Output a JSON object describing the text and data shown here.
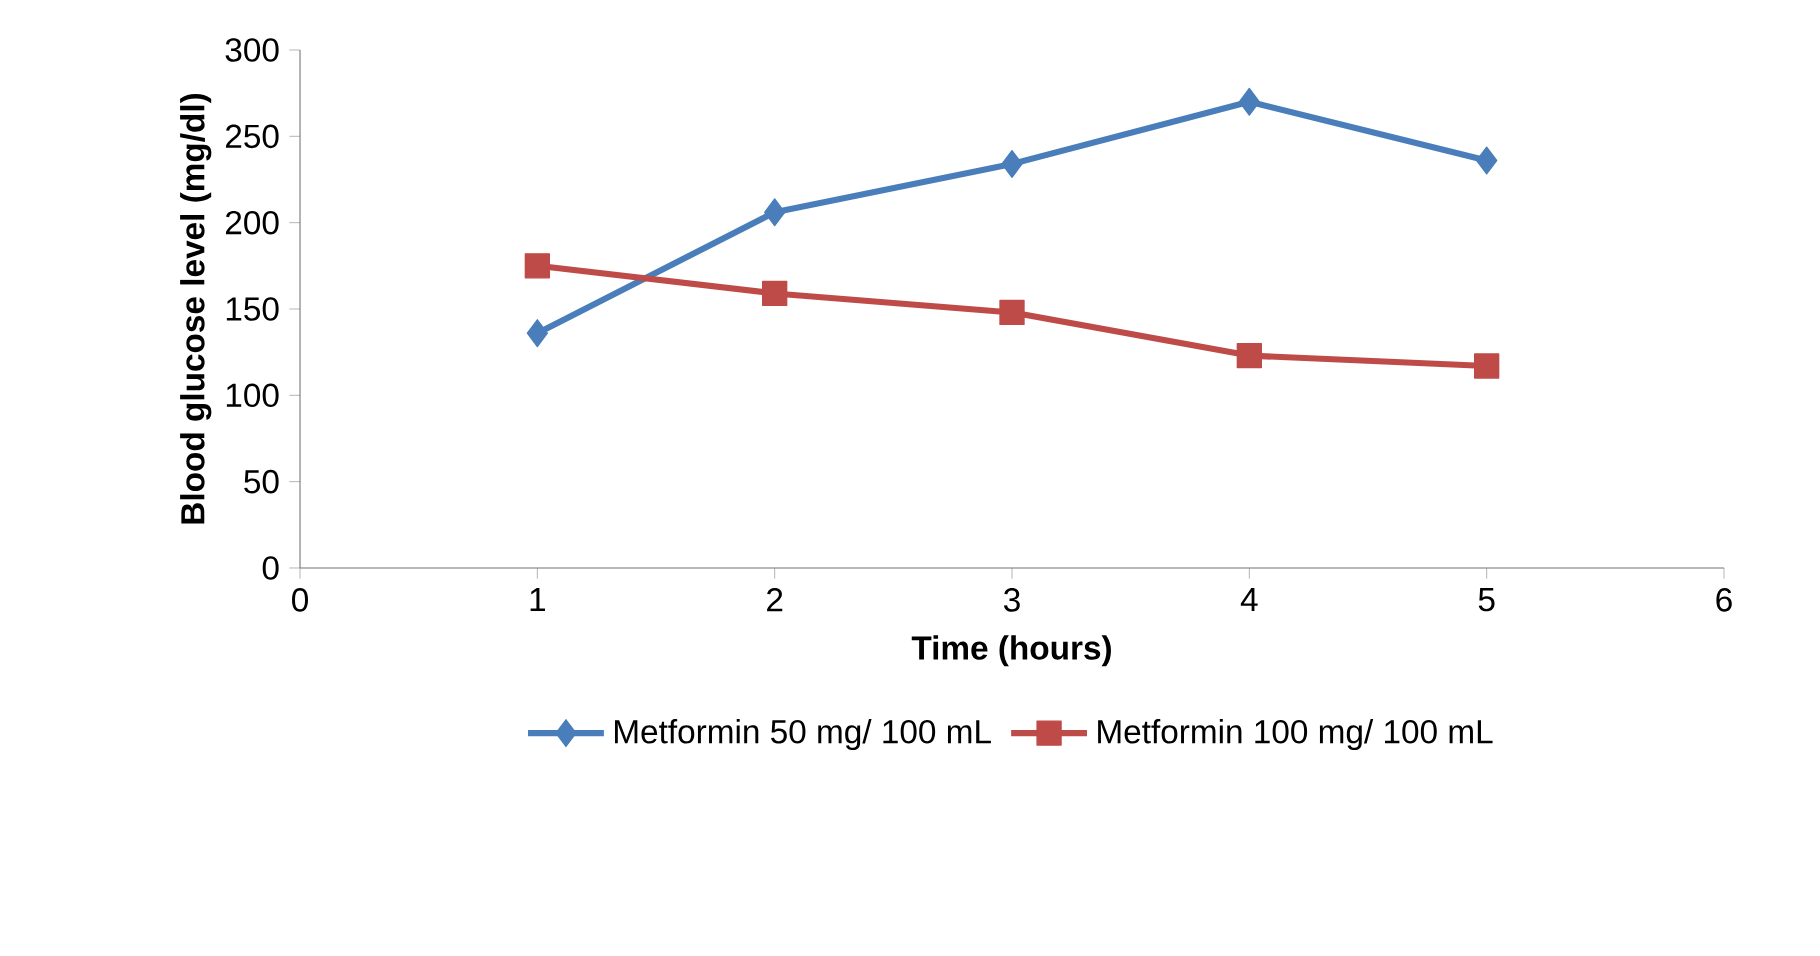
{
  "chart_data": {
    "type": "line",
    "xlabel": "Time (hours)",
    "ylabel": "Blood glucose level (mg/dl)",
    "xlim": [
      0,
      6
    ],
    "xticks": [
      0,
      1,
      2,
      3,
      4,
      5,
      6
    ],
    "ylim": [
      0,
      300
    ],
    "yticks": [
      0,
      50,
      100,
      150,
      200,
      250,
      300
    ],
    "x": [
      1,
      2,
      3,
      4,
      5
    ],
    "legend": "bottom",
    "grid": false,
    "series": [
      {
        "name": "Metformin 50 mg/ 100 mL",
        "color": "#4a7ebb",
        "marker": "diamond",
        "values": [
          136,
          206,
          234,
          270,
          236
        ]
      },
      {
        "name": "Metformin 100 mg/ 100 mL",
        "color": "#be4b48",
        "marker": "square",
        "values": [
          175,
          159,
          148,
          123,
          117
        ]
      }
    ]
  }
}
